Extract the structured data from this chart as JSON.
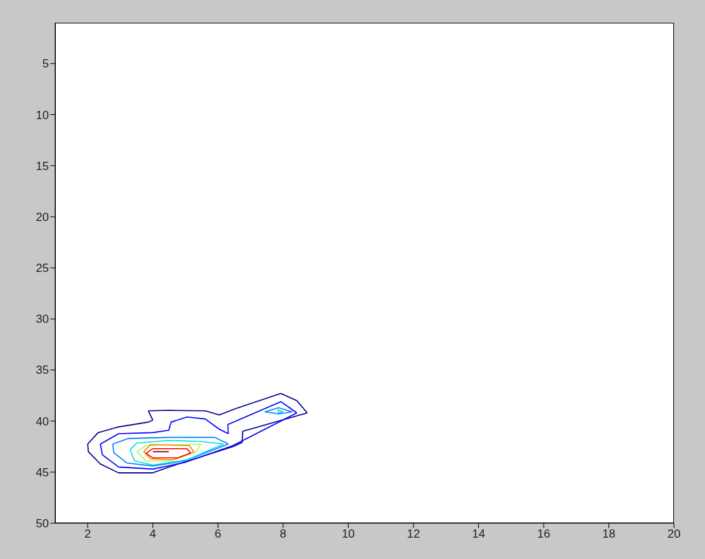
{
  "chart_data": {
    "type": "line",
    "xlim": [
      1,
      20
    ],
    "ylim": [
      50,
      1
    ],
    "xticks": [
      2,
      4,
      6,
      8,
      10,
      12,
      14,
      16,
      18,
      20
    ],
    "yticks": [
      5,
      10,
      15,
      20,
      25,
      30,
      35,
      40,
      45,
      50
    ],
    "grid": false,
    "series": [
      {
        "color": "#00008f",
        "x": [
          2.0,
          2.32,
          2.95,
          3.86,
          4.0
        ],
        "values": [
          42.25,
          41.13,
          40.57,
          40.1,
          39.9
        ]
      },
      {
        "color": "#00008f",
        "x": [
          3.86,
          4.0
        ],
        "values": [
          39.0,
          39.9
        ]
      },
      {
        "color": "#00008f",
        "x": [
          3.86,
          4.49,
          5.61,
          6.04,
          6.53,
          7.93,
          8.42,
          8.74
        ],
        "values": [
          39.0,
          38.95,
          39.0,
          39.4,
          38.8,
          37.3,
          38.0,
          39.2
        ]
      },
      {
        "color": "#00008f",
        "x": [
          6.76,
          8.74
        ],
        "values": [
          41.0,
          39.2
        ]
      },
      {
        "color": "#00008f",
        "x": [
          2.0,
          2.02,
          2.39,
          2.95,
          4.0,
          4.49,
          6.46,
          6.74,
          6.76
        ],
        "values": [
          42.25,
          43.0,
          44.2,
          45.07,
          45.07,
          44.5,
          42.5,
          42.1,
          41.0
        ]
      },
      {
        "color": "#0000ff",
        "x": [
          2.39,
          2.95,
          4.0,
          4.49,
          4.56,
          5.05,
          5.61,
          6.04,
          6.32
        ],
        "values": [
          42.25,
          41.24,
          41.13,
          40.9,
          40.1,
          39.6,
          39.8,
          40.8,
          41.24
        ]
      },
      {
        "color": "#0000ff",
        "x": [
          6.3,
          6.32
        ],
        "values": [
          40.34,
          41.24
        ]
      },
      {
        "color": "#0000ff",
        "x": [
          6.3,
          7.93,
          8.42
        ],
        "values": [
          40.34,
          38.1,
          39.2
        ]
      },
      {
        "color": "#0000ff",
        "x": [
          2.39,
          2.45,
          2.95,
          4.0,
          4.98,
          6.46,
          8.42
        ],
        "values": [
          42.25,
          43.3,
          44.5,
          44.7,
          44.05,
          42.4,
          39.2
        ]
      },
      {
        "color": "#0080ff",
        "x": [
          2.77,
          3.26,
          4.49,
          5.9,
          6.32
        ],
        "values": [
          42.25,
          41.7,
          41.6,
          41.6,
          42.25
        ]
      },
      {
        "color": "#0080ff",
        "x": [
          2.77,
          2.8,
          3.2,
          4.0,
          4.98,
          6.32
        ],
        "values": [
          42.25,
          43.1,
          44.1,
          44.4,
          43.9,
          42.25
        ]
      },
      {
        "color": "#0080ff",
        "x": [
          7.44,
          7.86,
          8.28
        ],
        "values": [
          39.1,
          38.7,
          39.1
        ]
      },
      {
        "color": "#0080ff",
        "x": [
          7.44,
          7.86,
          8.28
        ],
        "values": [
          39.1,
          39.3,
          39.1
        ]
      },
      {
        "color": "#00e0e0",
        "x": [
          3.3,
          3.51,
          4.49,
          5.47,
          6.17
        ],
        "values": [
          42.8,
          42.15,
          41.9,
          42.0,
          42.25
        ]
      },
      {
        "color": "#00e0e0",
        "x": [
          3.3,
          3.44,
          4.0,
          5.05,
          6.17
        ],
        "values": [
          42.8,
          43.9,
          44.3,
          43.8,
          42.25
        ]
      },
      {
        "color": "#00e0e0",
        "x": [
          7.84,
          8.0
        ],
        "values": [
          38.9,
          39.1
        ]
      },
      {
        "color": "#00e0e0",
        "x": [
          7.84,
          7.86,
          8.0
        ],
        "values": [
          38.9,
          39.2,
          39.1
        ]
      },
      {
        "color": "#a0ff60",
        "x": [
          3.51,
          3.79,
          5.47
        ],
        "values": [
          43.0,
          42.4,
          42.25
        ]
      },
      {
        "color": "#a0ff60",
        "x": [
          3.51,
          3.79,
          4.49,
          5.33,
          5.47
        ],
        "values": [
          43.0,
          43.9,
          43.9,
          43.0,
          42.25
        ]
      },
      {
        "color": "#ff8000",
        "x": [
          3.72,
          3.93,
          5.12,
          5.26
        ],
        "values": [
          43.0,
          42.3,
          42.4,
          43.0
        ]
      },
      {
        "color": "#ff8000",
        "x": [
          3.72,
          3.93,
          4.63,
          5.26
        ],
        "values": [
          43.0,
          43.7,
          43.8,
          43.0
        ]
      },
      {
        "color": "#ff0000",
        "x": [
          3.79,
          4.0,
          5.05,
          5.16
        ],
        "values": [
          43.15,
          42.7,
          42.7,
          43.15
        ]
      },
      {
        "color": "#ff0000",
        "x": [
          3.79,
          4.0,
          4.77,
          5.16
        ],
        "values": [
          43.15,
          43.6,
          43.6,
          43.15
        ]
      },
      {
        "color": "#800000",
        "x": [
          4.0,
          4.49
        ],
        "values": [
          43.0,
          43.0
        ]
      }
    ]
  }
}
